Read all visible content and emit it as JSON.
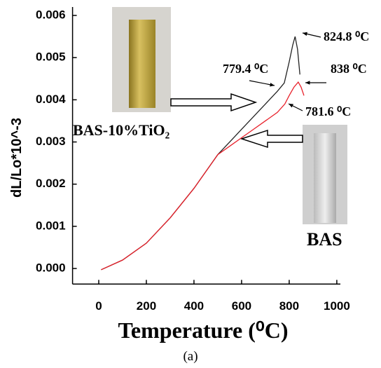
{
  "chart_data": {
    "type": "line",
    "caption": "(a)",
    "xlabel": "Temperature (⁰C)",
    "ylabel": "dL/Lo*10^-3",
    "xlim": [
      -110,
      1015
    ],
    "ylim": [
      -0.00037,
      0.0062
    ],
    "xticks": [
      0,
      200,
      400,
      600,
      800,
      1000
    ],
    "yticks": [
      {
        "value": 0,
        "label": "0.000"
      },
      {
        "value": 0.001,
        "label": "0.001"
      },
      {
        "value": 0.002,
        "label": "0.002"
      },
      {
        "value": 0.003,
        "label": "0.003"
      },
      {
        "value": 0.004,
        "label": "0.004"
      },
      {
        "value": 0.005,
        "label": "0.005"
      },
      {
        "value": 0.006,
        "label": "0.006"
      }
    ],
    "series": [
      {
        "name": "BAS-10%TiO₂",
        "color": "#222222",
        "x": [
          10,
          100,
          200,
          300,
          400,
          500,
          550,
          600,
          650,
          700,
          750,
          779.4,
          800,
          815,
          824.8,
          835,
          845
        ],
        "values": [
          -3e-05,
          0.0002,
          0.0006,
          0.0012,
          0.0019,
          0.0027,
          0.003,
          0.0033,
          0.0036,
          0.0039,
          0.0042,
          0.0044,
          0.0049,
          0.0053,
          0.0055,
          0.0052,
          0.0046
        ]
      },
      {
        "name": "BAS",
        "color": "#e8202a",
        "x": [
          10,
          100,
          200,
          300,
          400,
          500,
          550,
          600,
          650,
          700,
          750,
          781.6,
          800,
          820,
          838,
          850,
          862
        ],
        "values": [
          -3e-05,
          0.0002,
          0.0006,
          0.0012,
          0.0019,
          0.0027,
          0.0029,
          0.0031,
          0.0033,
          0.0035,
          0.0037,
          0.0039,
          0.0041,
          0.0043,
          0.00442,
          0.0043,
          0.0041
        ]
      }
    ],
    "annotations": [
      "824.8 ⁰C",
      "838 ⁰C",
      "779.4 ⁰C",
      "781.6 ⁰C"
    ]
  }
}
